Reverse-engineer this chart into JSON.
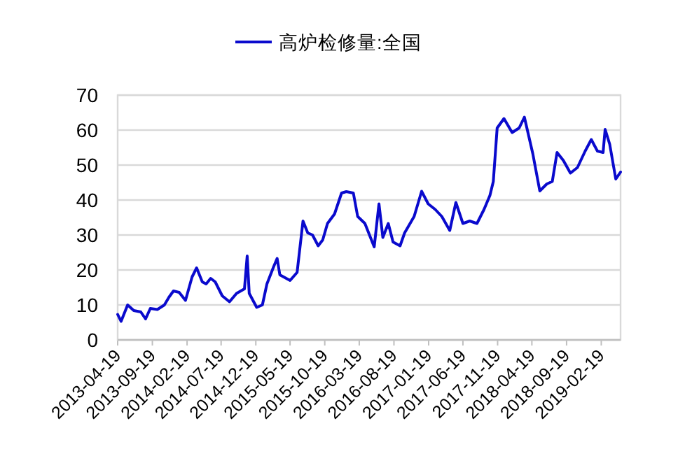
{
  "chart_data": {
    "type": "line",
    "legend": "top",
    "grid": "y",
    "line_style": "solid",
    "ylim": [
      0,
      70
    ],
    "yticks": [
      0,
      10,
      20,
      30,
      40,
      50,
      60,
      70
    ],
    "xlim": [
      "2013-04-19",
      "2019-05-15"
    ],
    "xticks": [
      "2013-04-19",
      "2013-09-19",
      "2014-02-19",
      "2014-07-19",
      "2014-12-19",
      "2015-05-19",
      "2015-10-19",
      "2016-03-19",
      "2016-08-19",
      "2017-01-19",
      "2017-06-19",
      "2017-11-19",
      "2018-04-19",
      "2018-09-19",
      "2019-02-19"
    ],
    "x": [
      "2013-04-19",
      "2013-05-04",
      "2013-06-02",
      "2013-06-29",
      "2013-07-30",
      "2013-08-20",
      "2013-09-10",
      "2013-10-11",
      "2013-11-11",
      "2013-12-01",
      "2013-12-21",
      "2014-01-15",
      "2014-02-12",
      "2014-03-13",
      "2014-04-02",
      "2014-04-27",
      "2014-05-14",
      "2014-06-03",
      "2014-06-23",
      "2014-07-24",
      "2014-08-25",
      "2014-09-25",
      "2014-10-30",
      "2014-11-11",
      "2014-11-20",
      "2014-12-23",
      "2015-01-17",
      "2015-02-06",
      "2015-03-08",
      "2015-03-23",
      "2015-04-04",
      "2015-05-19",
      "2015-06-19",
      "2015-07-15",
      "2015-08-05",
      "2015-08-26",
      "2015-09-20",
      "2015-10-10",
      "2015-10-31",
      "2015-12-01",
      "2016-01-01",
      "2016-01-22",
      "2016-02-22",
      "2016-03-12",
      "2016-04-13",
      "2016-05-24",
      "2016-06-14",
      "2016-07-01",
      "2016-07-25",
      "2016-08-15",
      "2016-09-15",
      "2016-10-05",
      "2016-11-16",
      "2016-12-19",
      "2017-01-17",
      "2017-02-17",
      "2017-03-18",
      "2017-04-22",
      "2017-05-19",
      "2017-06-19",
      "2017-07-19",
      "2017-08-20",
      "2017-09-20",
      "2017-10-16",
      "2017-10-31",
      "2017-11-17",
      "2017-12-17",
      "2018-01-22",
      "2018-02-22",
      "2018-03-17",
      "2018-04-23",
      "2018-05-24",
      "2018-06-24",
      "2018-07-18",
      "2018-08-08",
      "2018-09-05",
      "2018-10-06",
      "2018-11-06",
      "2018-12-10",
      "2019-01-06",
      "2019-02-02",
      "2019-02-27",
      "2019-03-08",
      "2019-03-28",
      "2019-04-24",
      "2019-05-15"
    ],
    "series": [
      {
        "name": "高炉检修量:全国",
        "color": "#0a0acd",
        "values": [
          7.3,
          5.3,
          10,
          8.4,
          8,
          6,
          9,
          8.7,
          10,
          12.2,
          14,
          13.6,
          11.3,
          18,
          20.6,
          16.6,
          16,
          17.6,
          16.6,
          12.6,
          10.9,
          13.3,
          14.6,
          24,
          13.3,
          9.3,
          10,
          16,
          21,
          23.3,
          18.6,
          17,
          19.3,
          34,
          30.6,
          30,
          26.9,
          28.6,
          33.3,
          36,
          42,
          42.4,
          42,
          35.3,
          33.3,
          26.6,
          38.9,
          29.3,
          33.3,
          28,
          26.9,
          30.6,
          35.3,
          42.5,
          38.9,
          37.3,
          35.3,
          31.3,
          39.3,
          33.3,
          34,
          33.3,
          37.3,
          41.3,
          45.3,
          60.6,
          63.3,
          59.3,
          60.6,
          63.7,
          53.3,
          42.6,
          44.6,
          45.3,
          53.6,
          51.3,
          47.7,
          49.3,
          54,
          57.3,
          54,
          53.6,
          60.2,
          56,
          46,
          48
        ]
      }
    ]
  }
}
